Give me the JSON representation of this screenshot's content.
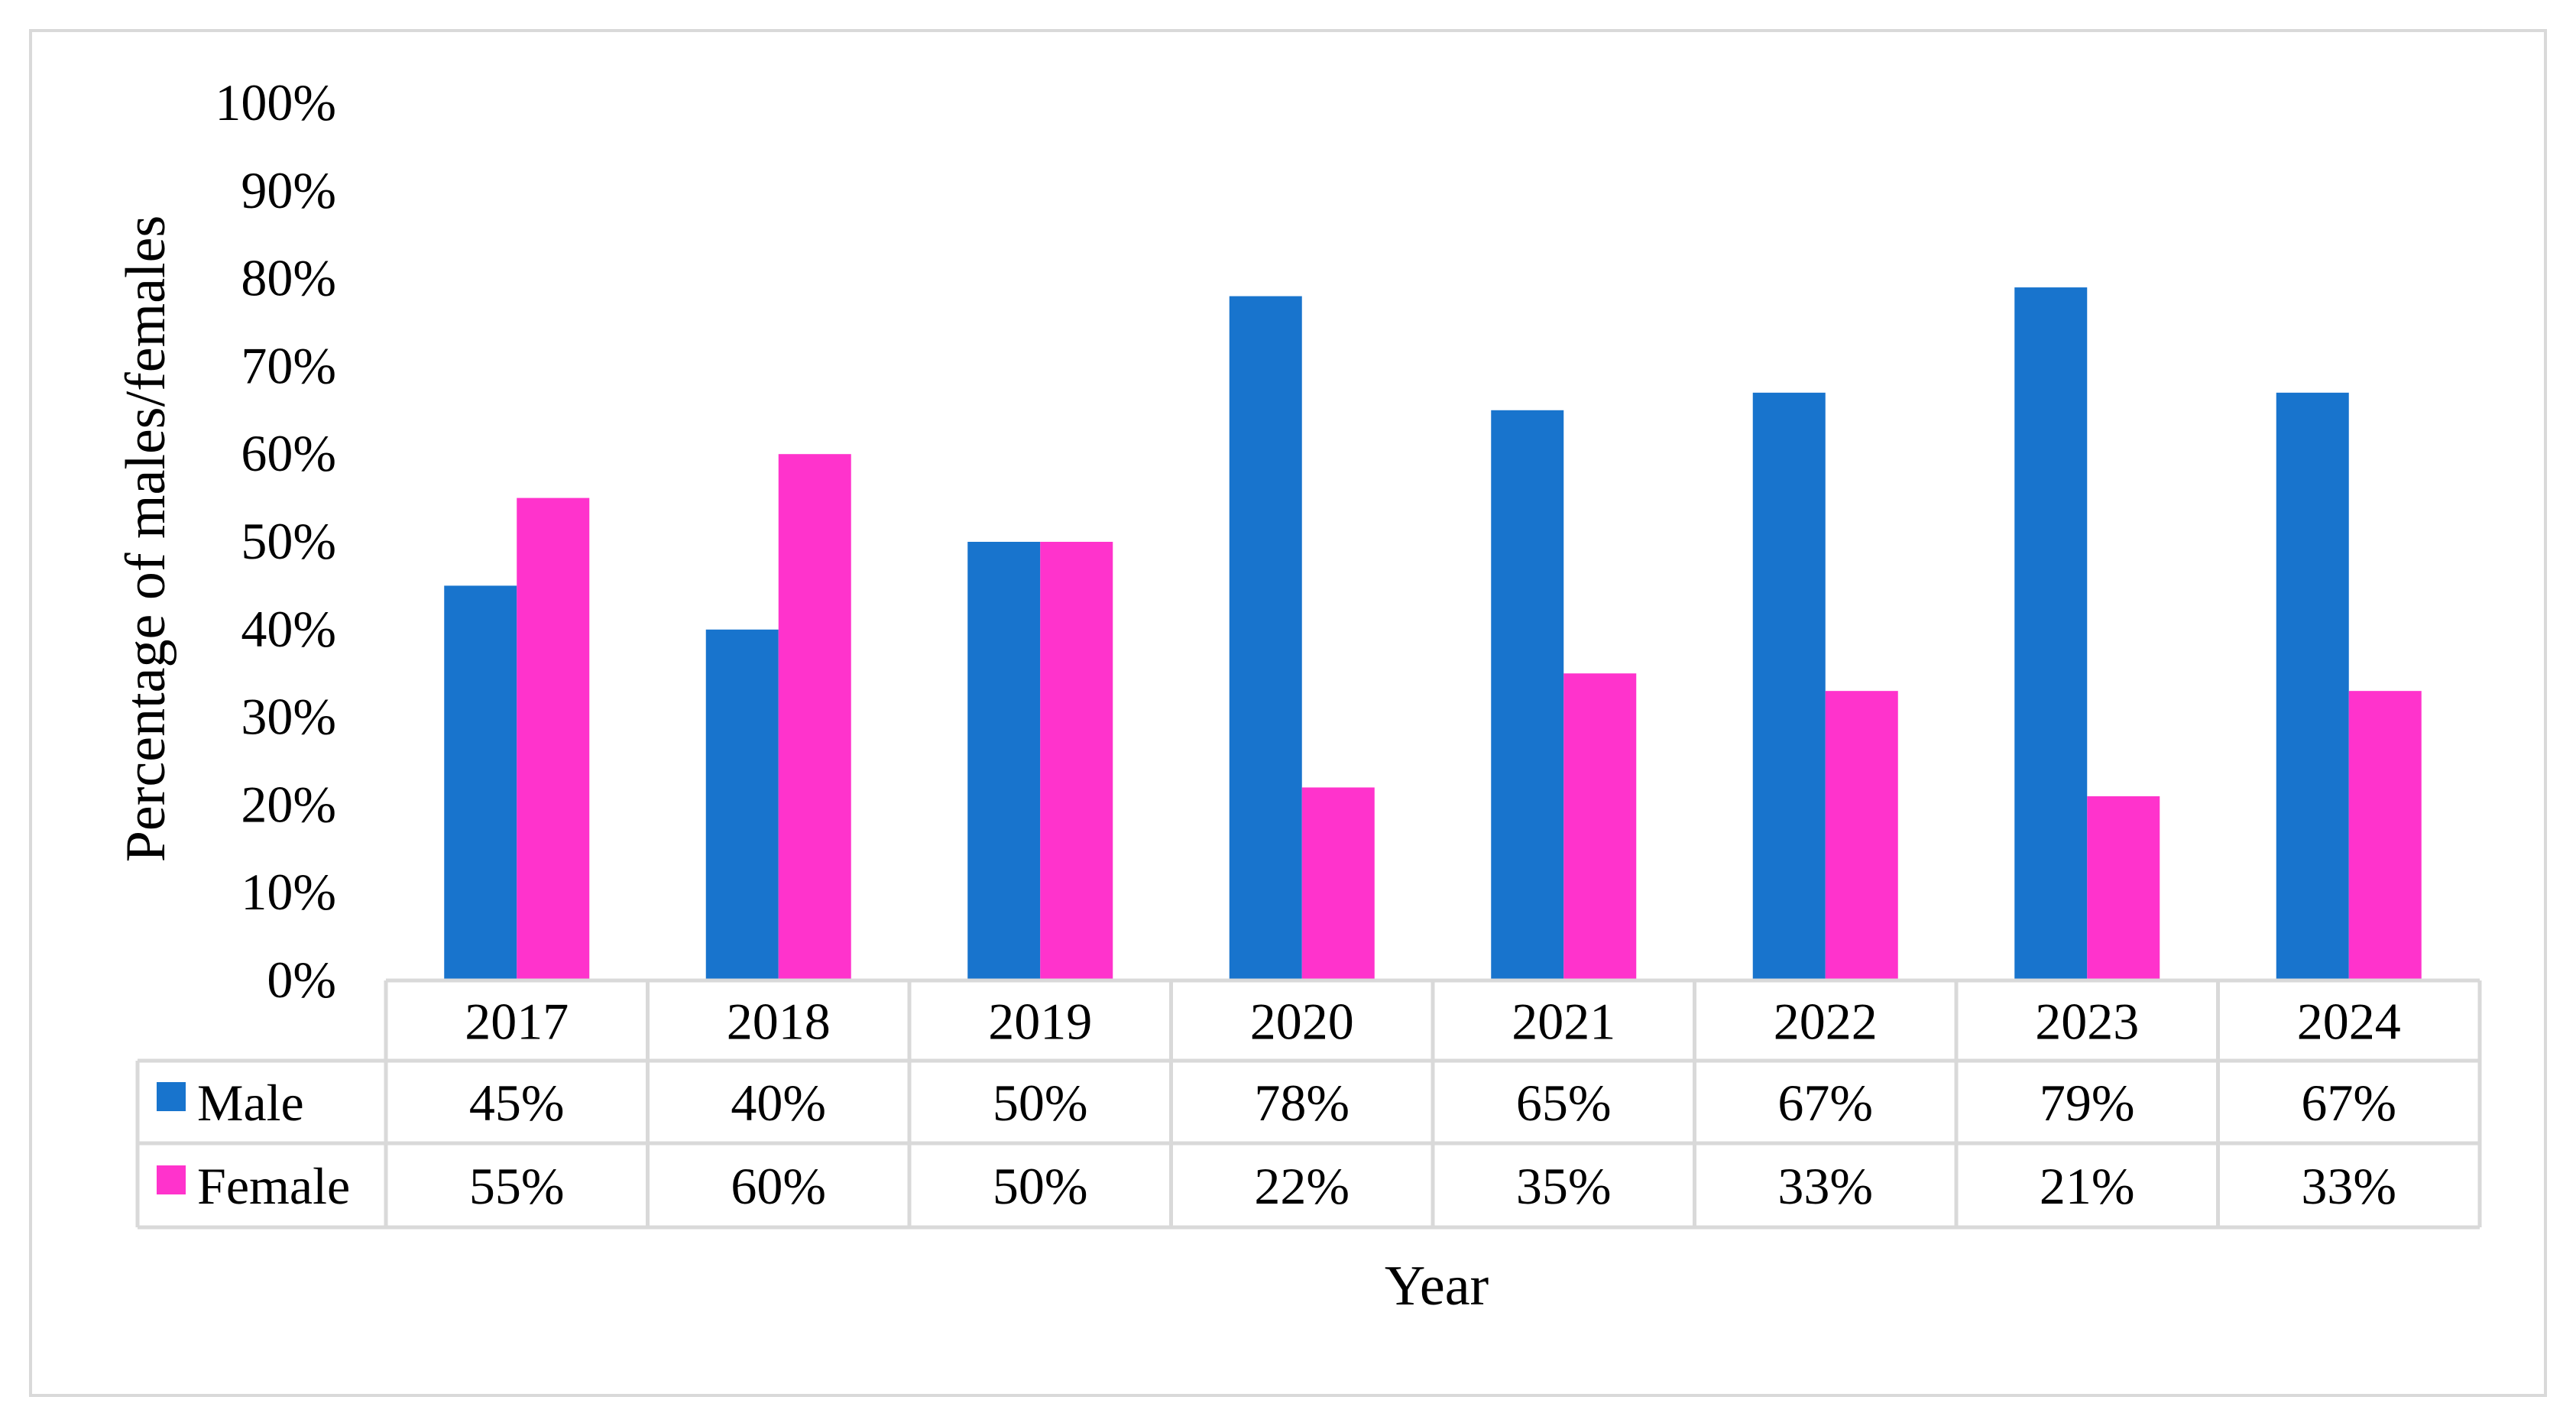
{
  "chart_data": {
    "type": "bar",
    "categories": [
      "2017",
      "2018",
      "2019",
      "2020",
      "2021",
      "2022",
      "2023",
      "2024"
    ],
    "series": [
      {
        "name": "Male",
        "color": "#1874cd",
        "values": [
          45,
          40,
          50,
          78,
          65,
          67,
          79,
          67
        ],
        "labels": [
          "45%",
          "40%",
          "50%",
          "78%",
          "65%",
          "67%",
          "79%",
          "67%"
        ]
      },
      {
        "name": "Female",
        "color": "#ff33cc",
        "values": [
          55,
          60,
          50,
          22,
          35,
          33,
          21,
          33
        ],
        "labels": [
          "55%",
          "60%",
          "50%",
          "22%",
          "35%",
          "33%",
          "21%",
          "33%"
        ]
      }
    ],
    "xlabel": "Year",
    "ylabel": "Percentage of males/females",
    "ylim": [
      0,
      100
    ],
    "yticks": [
      "0%",
      "10%",
      "20%",
      "30%",
      "40%",
      "50%",
      "60%",
      "70%",
      "80%",
      "90%",
      "100%"
    ],
    "grid": false,
    "legend": "data-table"
  }
}
